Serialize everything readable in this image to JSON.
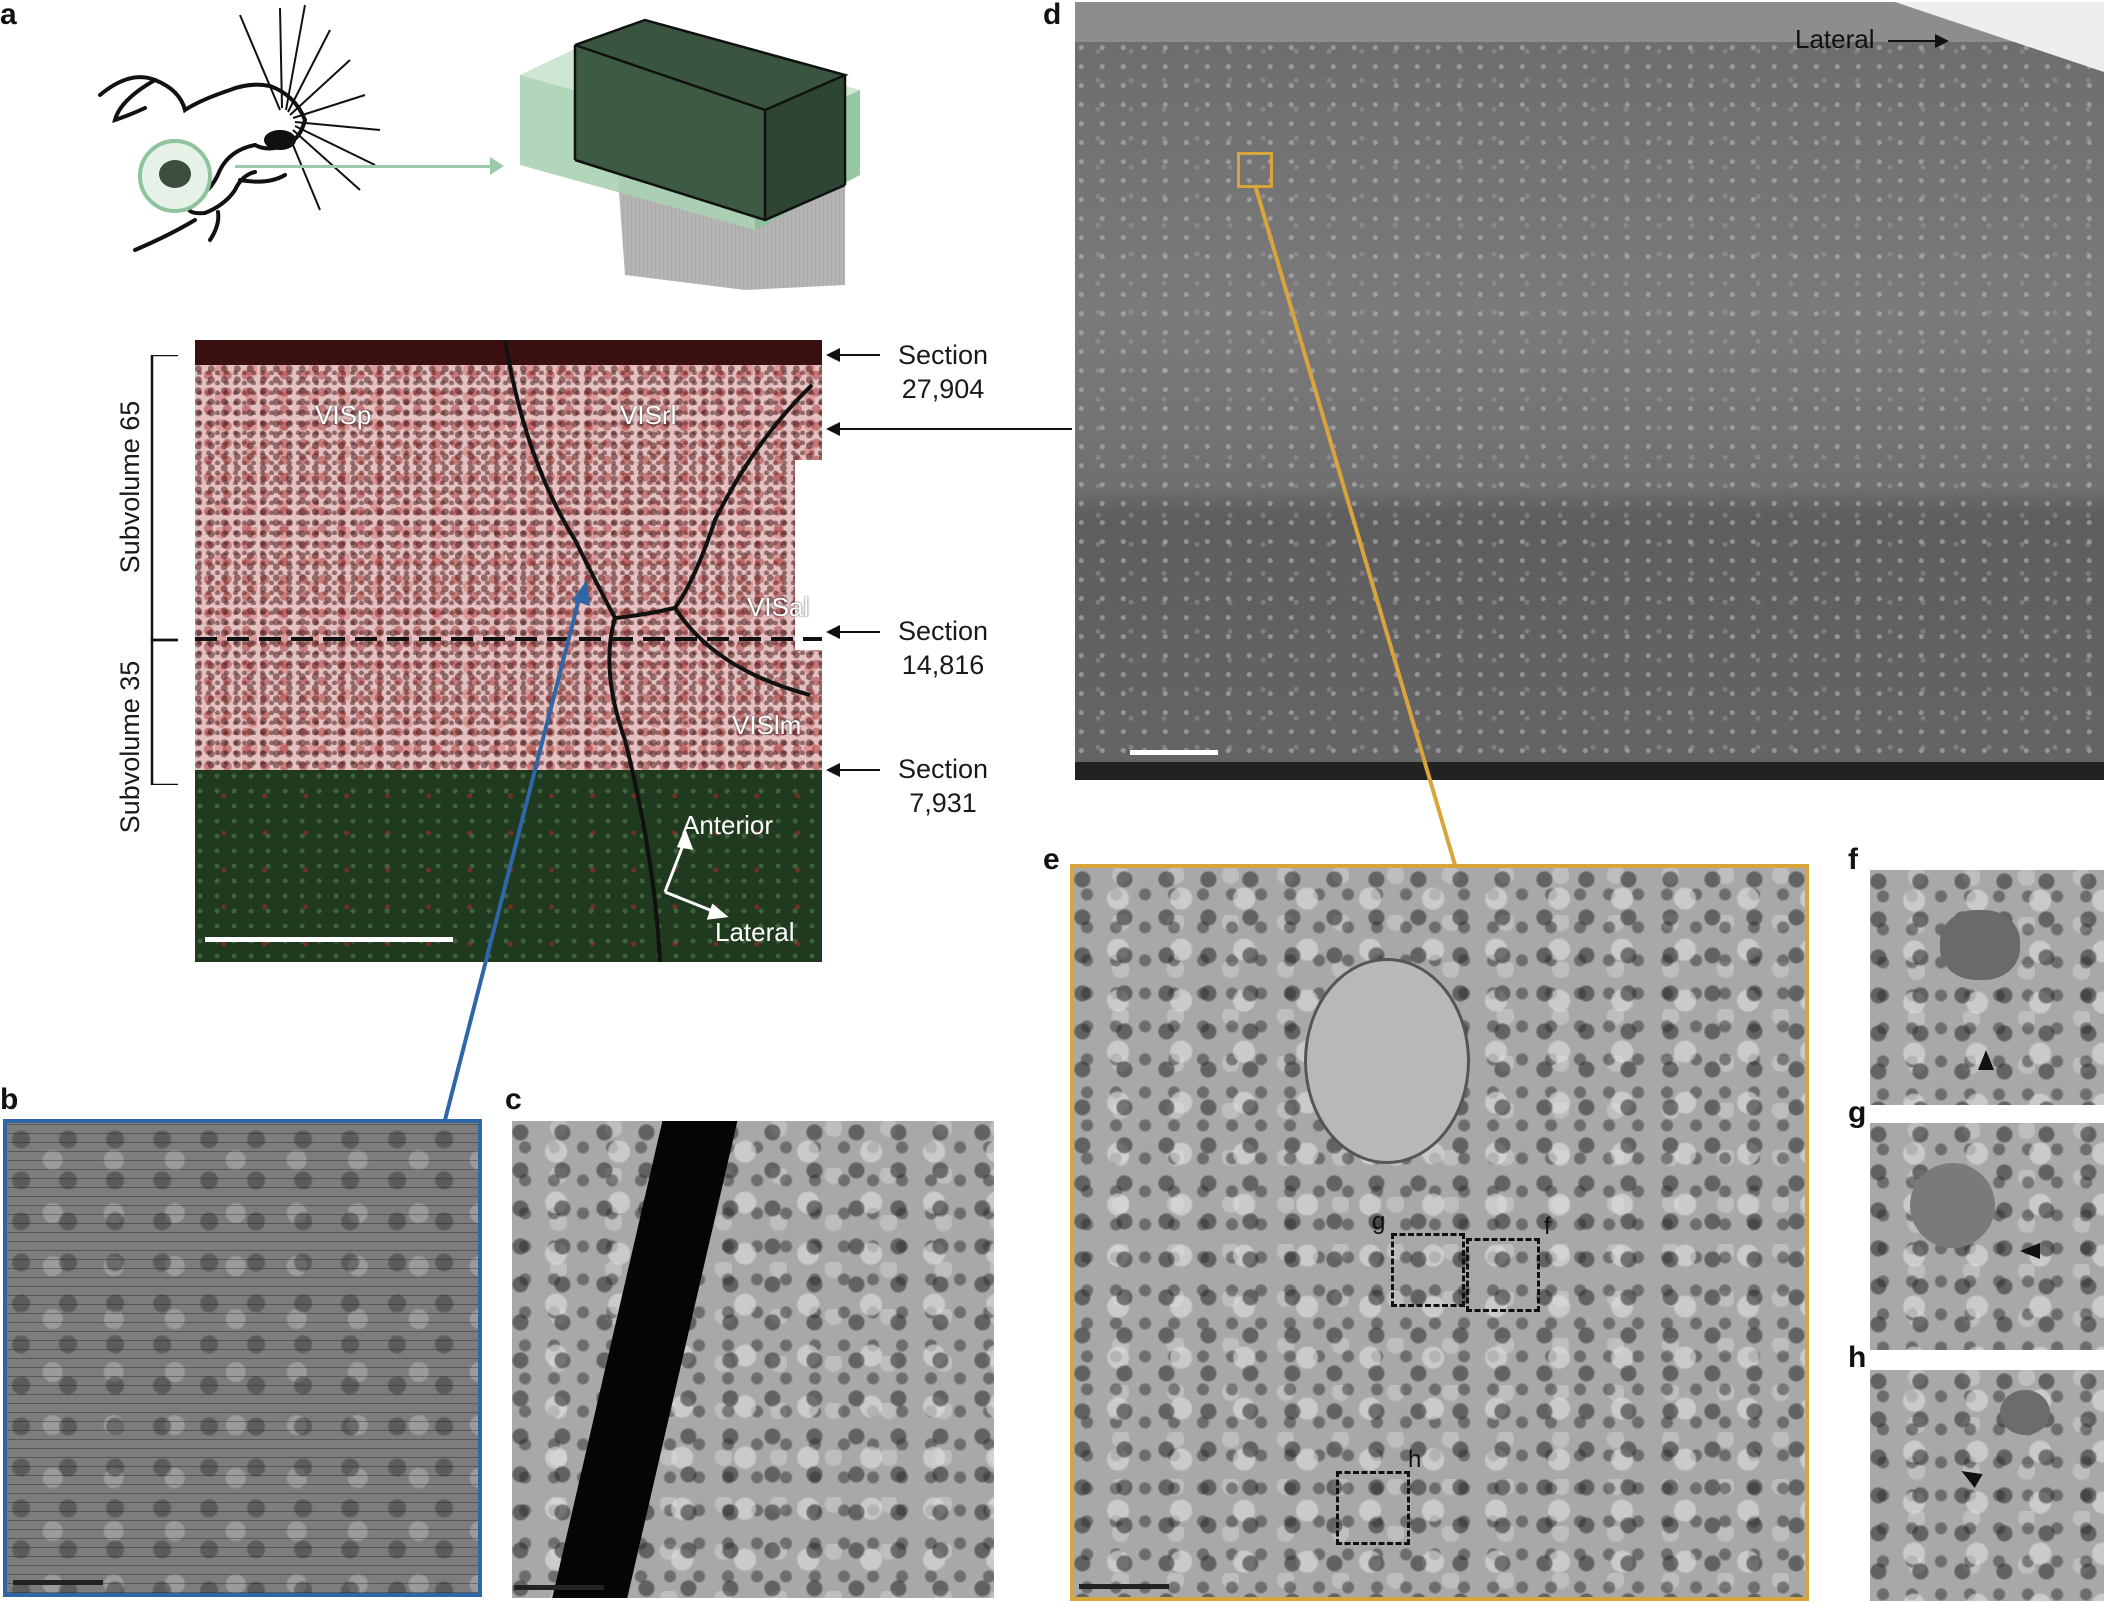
{
  "panels": {
    "a": "a",
    "b": "b",
    "c": "c",
    "d": "d",
    "e": "e",
    "f": "f",
    "g": "g",
    "h": "h"
  },
  "panel_a": {
    "regions": [
      "VISp",
      "VISrl",
      "VISal",
      "VISlm"
    ],
    "subvolumes": [
      "Subvolume 65",
      "Subvolume 35"
    ],
    "sections": [
      {
        "label": "Section",
        "number": "27,904"
      },
      {
        "label": "Section",
        "number": "14,816"
      },
      {
        "label": "Section",
        "number": "7,931"
      }
    ],
    "orientation": {
      "anterior": "Anterior",
      "lateral": "Lateral"
    }
  },
  "panel_d": {
    "lateral_label": "Lateral"
  },
  "panel_e": {
    "box_labels": [
      "g",
      "f",
      "h"
    ]
  },
  "colors": {
    "blue_link": "#2f66a8",
    "gold_link": "#d7a53a",
    "green_volume": "#4e9a68",
    "tissue_pink": "#e8c3c3",
    "tissue_green": "#1f3a1f"
  },
  "icons": [
    "mouse-head-icon",
    "volume-cube-icon",
    "arrow-icon"
  ]
}
